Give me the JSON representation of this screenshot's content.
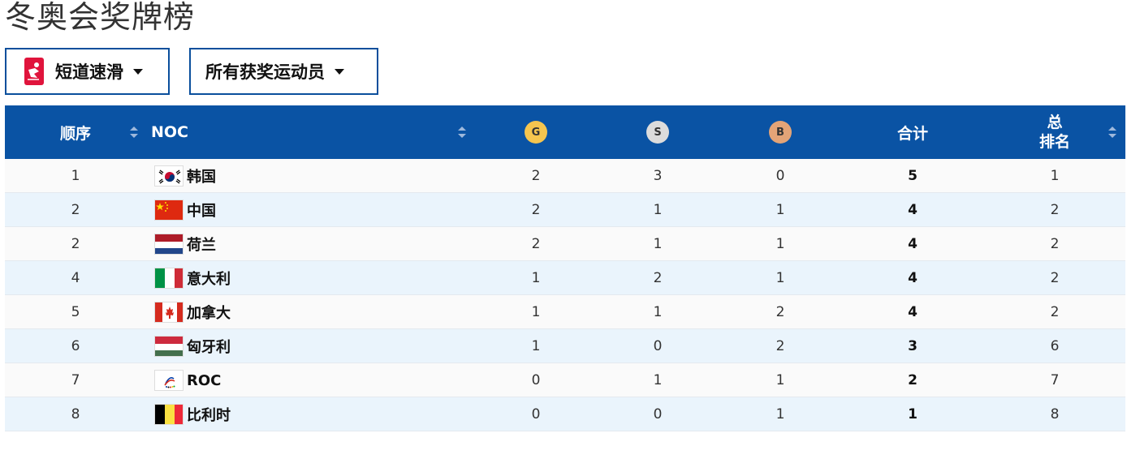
{
  "page": {
    "title": "冬奥会奖牌榜"
  },
  "filters": {
    "sport": {
      "label": "短道速滑",
      "icon": "short-track-skater-icon",
      "icon_color": "#e0143c"
    },
    "athletes": {
      "label": "所有获奖运动员"
    }
  },
  "table": {
    "header": {
      "rank": "顺序",
      "noc": "NOC",
      "gold": "G",
      "silver": "S",
      "bronze": "B",
      "total": "合计",
      "total_rank_line1": "总",
      "total_rank_line2": "排名"
    },
    "header_color": "#0a53a4",
    "medal_colors": {
      "gold": "#f5c54f",
      "silver": "#dcdcdc",
      "bronze": "#e3a477"
    },
    "rows": [
      {
        "rank": "1",
        "noc": "韩国",
        "flag": "south-korea-flag",
        "gold": "2",
        "silver": "3",
        "bronze": "0",
        "total": "5",
        "total_rank": "1"
      },
      {
        "rank": "2",
        "noc": "中国",
        "flag": "china-flag",
        "gold": "2",
        "silver": "1",
        "bronze": "1",
        "total": "4",
        "total_rank": "2"
      },
      {
        "rank": "2",
        "noc": "荷兰",
        "flag": "netherlands-flag",
        "gold": "2",
        "silver": "1",
        "bronze": "1",
        "total": "4",
        "total_rank": "2"
      },
      {
        "rank": "4",
        "noc": "意大利",
        "flag": "italy-flag",
        "gold": "1",
        "silver": "2",
        "bronze": "1",
        "total": "4",
        "total_rank": "2"
      },
      {
        "rank": "5",
        "noc": "加拿大",
        "flag": "canada-flag",
        "gold": "1",
        "silver": "1",
        "bronze": "2",
        "total": "4",
        "total_rank": "2"
      },
      {
        "rank": "6",
        "noc": "匈牙利",
        "flag": "hungary-flag",
        "gold": "1",
        "silver": "0",
        "bronze": "2",
        "total": "3",
        "total_rank": "6"
      },
      {
        "rank": "7",
        "noc": "ROC",
        "flag": "roc-flag",
        "gold": "0",
        "silver": "1",
        "bronze": "1",
        "total": "2",
        "total_rank": "7"
      },
      {
        "rank": "8",
        "noc": "比利时",
        "flag": "belgium-flag",
        "gold": "0",
        "silver": "0",
        "bronze": "1",
        "total": "1",
        "total_rank": "8"
      }
    ]
  }
}
